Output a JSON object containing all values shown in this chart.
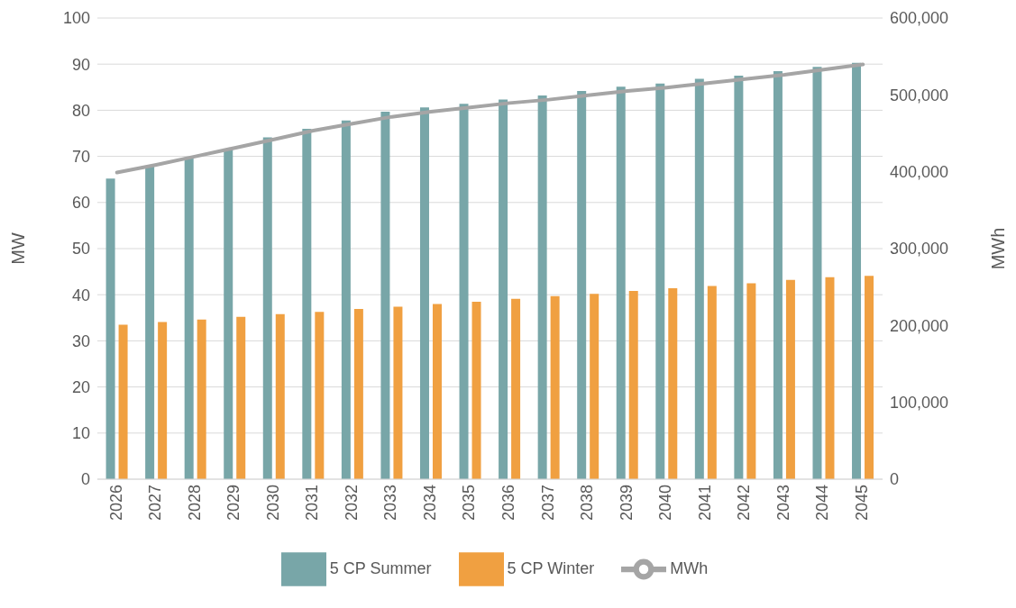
{
  "chart_data": {
    "type": "bar",
    "ylabel": "MW",
    "y2label": "MWh",
    "categories": [
      "2026",
      "2027",
      "2028",
      "2029",
      "2030",
      "2031",
      "2032",
      "2033",
      "2034",
      "2035",
      "2036",
      "2037",
      "2038",
      "2039",
      "2040",
      "2041",
      "2042",
      "2043",
      "2044",
      "2045"
    ],
    "series": [
      {
        "name": "5 CP Summer",
        "color": "#78a6a8",
        "values": [
          65.2,
          67.8,
          69.8,
          71.7,
          74.1,
          76.0,
          77.8,
          79.7,
          80.6,
          81.4,
          82.3,
          83.2,
          84.2,
          85.1,
          85.8,
          86.8,
          87.5,
          88.5,
          89.4,
          90.3
        ]
      },
      {
        "name": "5 CP Winter",
        "color": "#f0a041",
        "values": [
          33.5,
          34.1,
          34.6,
          35.2,
          35.8,
          36.3,
          36.9,
          37.4,
          38.0,
          38.5,
          39.1,
          39.7,
          40.2,
          40.8,
          41.4,
          41.9,
          42.5,
          43.2,
          43.8,
          44.1
        ]
      },
      {
        "name": "MWh",
        "type": "line",
        "axis": "y2",
        "color": "#a5a5a5",
        "values": [
          399000,
          409000,
          420000,
          431000,
          442000,
          453600,
          462600,
          471500,
          478000,
          483800,
          489400,
          493800,
          499400,
          505000,
          509500,
          515000,
          520700,
          526200,
          533000,
          539700
        ]
      }
    ],
    "ylim": [
      0,
      100
    ],
    "yticks": [
      0,
      10,
      20,
      30,
      40,
      50,
      60,
      70,
      80,
      90,
      100
    ],
    "y2lim": [
      0,
      600000
    ],
    "y2ticks": [
      0,
      {
        "value": 100000,
        "label": "100,000"
      },
      {
        "value": 200000,
        "label": "200,000"
      },
      {
        "value": 300000,
        "label": "300,000"
      },
      {
        "value": 400000,
        "label": "400,000"
      },
      {
        "value": 500000,
        "label": "500,000"
      },
      {
        "value": 600000,
        "label": "600,000"
      }
    ],
    "grid": "y",
    "legend": "bottom",
    "marker": "none",
    "line_style": "solid"
  }
}
